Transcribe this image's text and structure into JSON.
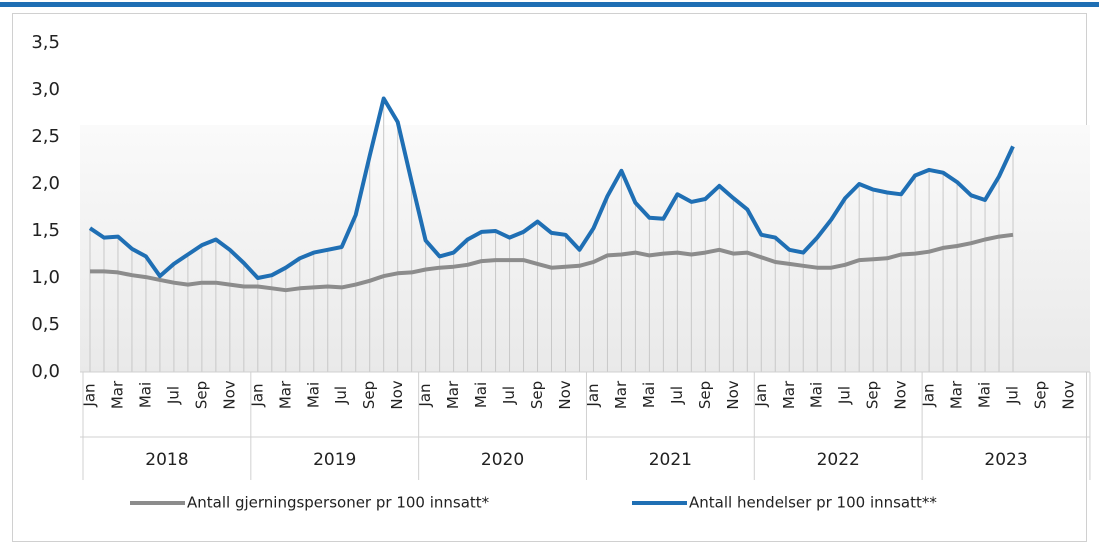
{
  "chart_data": {
    "type": "line",
    "categories": [
      "Jan",
      null,
      "Mar",
      null,
      "Mai",
      null,
      "Jul",
      null,
      "Sep",
      null,
      "Nov",
      null,
      "Jan",
      null,
      "Mar",
      null,
      "Mai",
      null,
      "Jul",
      null,
      "Sep",
      null,
      "Nov",
      null,
      "Jan",
      null,
      "Mar",
      null,
      "Mai",
      null,
      "Jul",
      null,
      "Sep",
      null,
      "Nov",
      null,
      "Jan",
      null,
      "Mar",
      null,
      "Mai",
      null,
      "Jul",
      null,
      "Sep",
      null,
      "Nov",
      null,
      "Jan",
      null,
      "Mar",
      null,
      "Mai",
      null,
      "Jul",
      null,
      "Sep",
      null,
      "Nov",
      null,
      "Jan",
      null,
      "Mar",
      null,
      "Mai",
      null,
      "Jul",
      null,
      "Sep",
      null,
      "Nov",
      null
    ],
    "years": [
      "2018",
      "2019",
      "2020",
      "2021",
      "2022",
      "2023"
    ],
    "series": [
      {
        "name": "Antall gjerningspersoner pr 100 innsatt*",
        "color": "#8c8c8c",
        "values": [
          1.07,
          1.07,
          1.06,
          1.03,
          1.01,
          0.98,
          0.95,
          0.93,
          0.95,
          0.95,
          0.93,
          0.91,
          0.91,
          0.89,
          0.87,
          0.89,
          0.9,
          0.91,
          0.9,
          0.93,
          0.97,
          1.02,
          1.05,
          1.06,
          1.09,
          1.11,
          1.12,
          1.14,
          1.18,
          1.19,
          1.19,
          1.19,
          1.15,
          1.11,
          1.12,
          1.13,
          1.17,
          1.24,
          1.25,
          1.27,
          1.24,
          1.26,
          1.27,
          1.25,
          1.27,
          1.3,
          1.26,
          1.27,
          1.22,
          1.17,
          1.15,
          1.13,
          1.11,
          1.11,
          1.14,
          1.19,
          1.2,
          1.21,
          1.25,
          1.26,
          1.28,
          1.32,
          1.34,
          1.37,
          1.41,
          1.44,
          1.46,
          null,
          null,
          null,
          null,
          null
        ]
      },
      {
        "name": "Antall hendelser pr 100 innsatt**",
        "color": "#1f6fb4",
        "values": [
          1.53,
          1.43,
          1.44,
          1.31,
          1.23,
          1.02,
          1.15,
          1.25,
          1.35,
          1.41,
          1.3,
          1.16,
          1.0,
          1.03,
          1.11,
          1.21,
          1.27,
          1.3,
          1.33,
          1.67,
          2.3,
          2.91,
          2.66,
          2.02,
          1.4,
          1.23,
          1.27,
          1.41,
          1.49,
          1.5,
          1.43,
          1.49,
          1.6,
          1.48,
          1.46,
          1.3,
          1.53,
          1.87,
          2.14,
          1.8,
          1.64,
          1.63,
          1.89,
          1.81,
          1.84,
          1.98,
          1.85,
          1.73,
          1.46,
          1.43,
          1.3,
          1.27,
          1.43,
          1.62,
          1.85,
          2.0,
          1.94,
          1.91,
          1.89,
          2.09,
          2.15,
          2.12,
          2.02,
          1.88,
          1.83,
          2.08,
          2.4,
          null,
          null,
          null,
          null,
          null
        ]
      }
    ],
    "ylim": [
      0,
      3.5
    ],
    "yticks": [
      {
        "value": 0,
        "label": "0,0"
      },
      {
        "value": 0.5,
        "label": "0,5"
      },
      {
        "value": 1,
        "label": "1,0"
      },
      {
        "value": 1.5,
        "label": "1,5"
      },
      {
        "value": 2,
        "label": "2,0"
      },
      {
        "value": 2.5,
        "label": "2,5"
      },
      {
        "value": 3,
        "label": "3,0"
      },
      {
        "value": 3.5,
        "label": "3,5"
      }
    ],
    "legend": "bottom"
  }
}
